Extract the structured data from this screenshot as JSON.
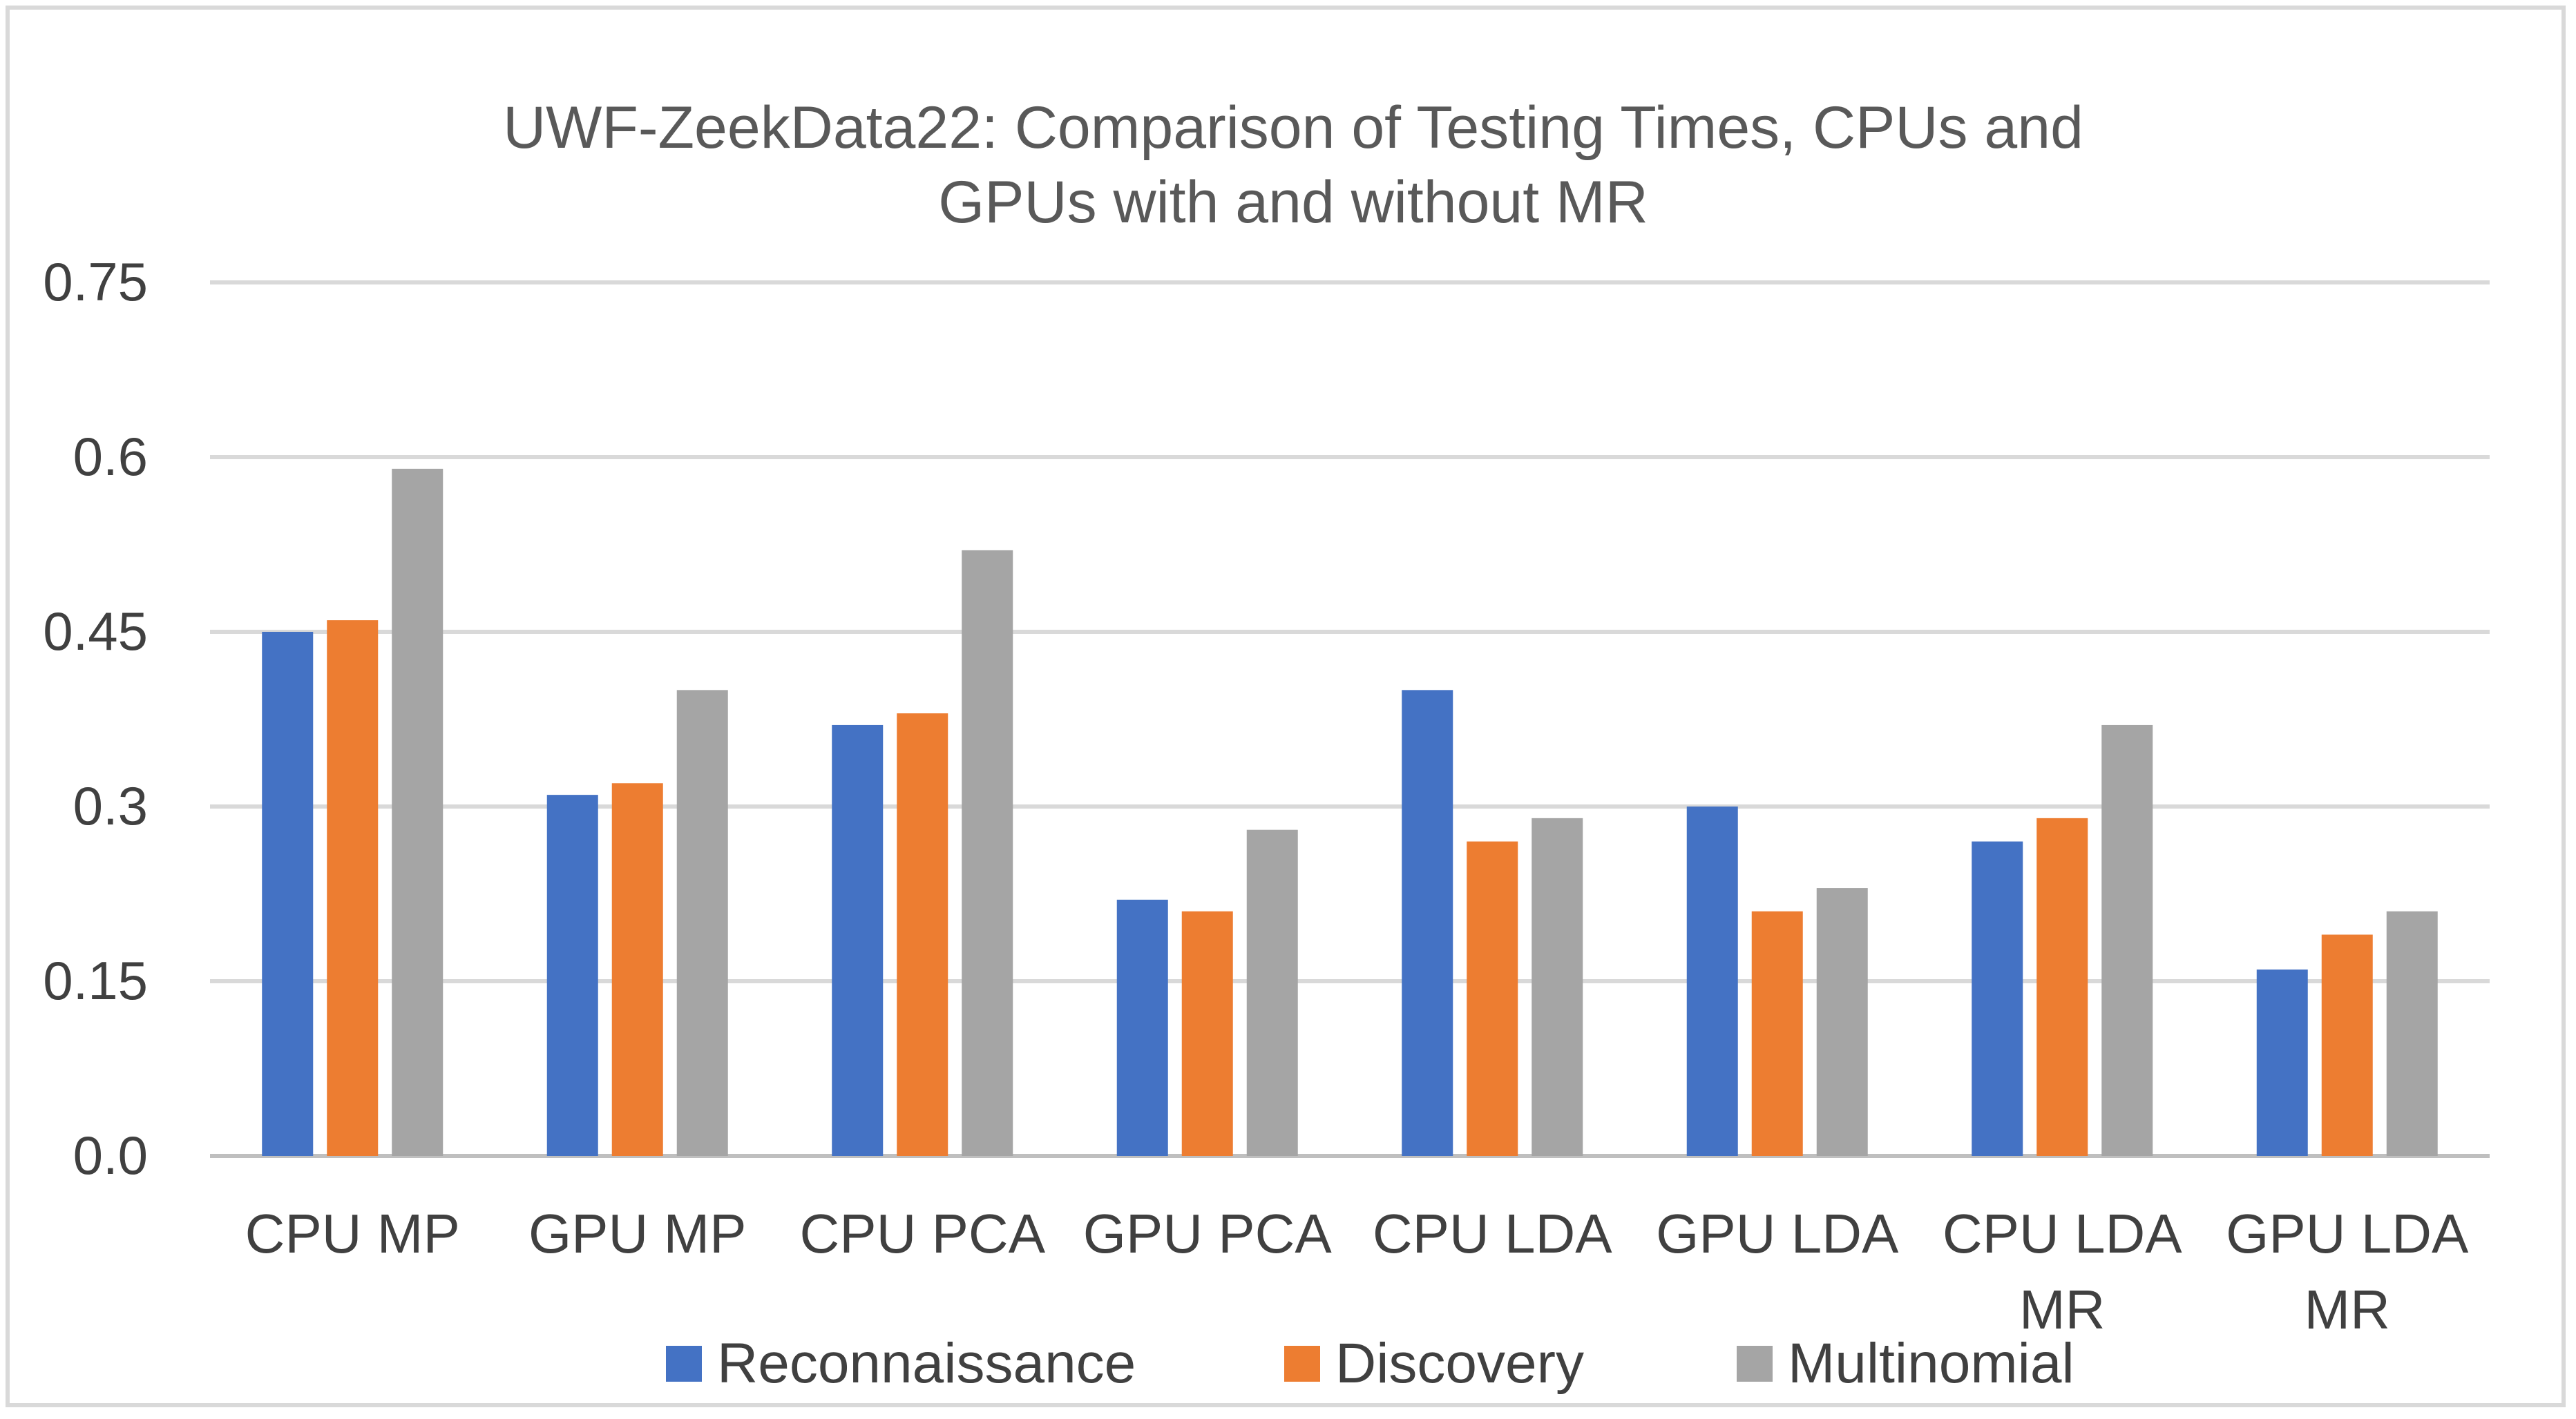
{
  "chart_data": {
    "type": "bar",
    "title_lines": [
      "UWF-ZeekData22: Comparison of Testing Times, CPUs and",
      "GPUs with and without MR"
    ],
    "xlabel": "",
    "ylabel": "",
    "ylim": [
      0,
      0.75
    ],
    "yticks": [
      {
        "value": 0,
        "label": "0.0"
      },
      {
        "value": 0.15,
        "label": "0.15"
      },
      {
        "value": 0.3,
        "label": "0.3"
      },
      {
        "value": 0.45,
        "label": "0.45"
      },
      {
        "value": 0.6,
        "label": "0.6"
      },
      {
        "value": 0.75,
        "label": "0.75"
      }
    ],
    "grid": true,
    "legend_position": "bottom",
    "categories": [
      [
        "CPU MP"
      ],
      [
        "GPU MP"
      ],
      [
        "CPU PCA"
      ],
      [
        "GPU PCA"
      ],
      [
        "CPU LDA"
      ],
      [
        "GPU LDA"
      ],
      [
        "CPU LDA",
        "MR"
      ],
      [
        "GPU LDA",
        "MR"
      ]
    ],
    "series": [
      {
        "name": "Reconnaissance",
        "color": "#4472c4",
        "values": [
          0.45,
          0.31,
          0.37,
          0.22,
          0.4,
          0.3,
          0.27,
          0.16
        ]
      },
      {
        "name": "Discovery",
        "color": "#ed7d31",
        "values": [
          0.46,
          0.32,
          0.38,
          0.21,
          0.27,
          0.21,
          0.29,
          0.19
        ]
      },
      {
        "name": "Multinomial",
        "color": "#a5a5a5",
        "values": [
          0.59,
          0.4,
          0.52,
          0.28,
          0.29,
          0.23,
          0.37,
          0.21
        ]
      }
    ]
  }
}
